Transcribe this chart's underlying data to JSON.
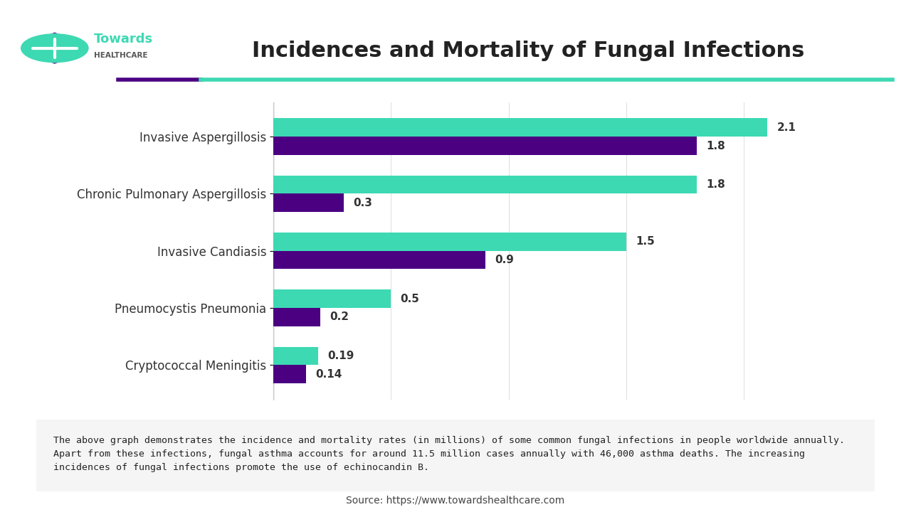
{
  "title": "Incidences and Mortality of Fungal Infections",
  "categories": [
    "Cryptococcal Meningitis",
    "Pneumocystis Pneumonia",
    "Invasive Candiasis",
    "Chronic Pulmonary Aspergillosis",
    "Invasive Aspergillosis"
  ],
  "incidences": [
    0.19,
    0.5,
    1.5,
    1.8,
    2.1
  ],
  "deaths": [
    0.14,
    0.2,
    0.9,
    0.3,
    1.8
  ],
  "incidence_color": "#3DD9B3",
  "death_color": "#4B0082",
  "bar_height": 0.32,
  "xlim": [
    0,
    2.4
  ],
  "title_fontsize": 22,
  "label_fontsize": 12,
  "annotation_fontsize": 11,
  "legend_fontsize": 12,
  "bg_color": "#FFFFFF",
  "chart_bg": "#FFFFFF",
  "separator_line_teal": "#3DD9B3",
  "separator_line_purple": "#4B0082",
  "footer_text": "The above graph demonstrates the incidence and mortality rates (in millions) of some common fungal infections in people worldwide annually.\nApart from these infections, fungal asthma accounts for around 11.5 million cases annually with 46,000 asthma deaths. The increasing\nincidences of fungal infections promote the use of echinocandin B.",
  "source_text": "Source: https://www.towardshealthcare.com",
  "footer_bg": "#F5F5F5",
  "logo_text_towards": "Towards",
  "logo_text_healthcare": "HEALTHCARE",
  "logo_teal": "#3DD9B3",
  "logo_purple": "#6B3FA0"
}
